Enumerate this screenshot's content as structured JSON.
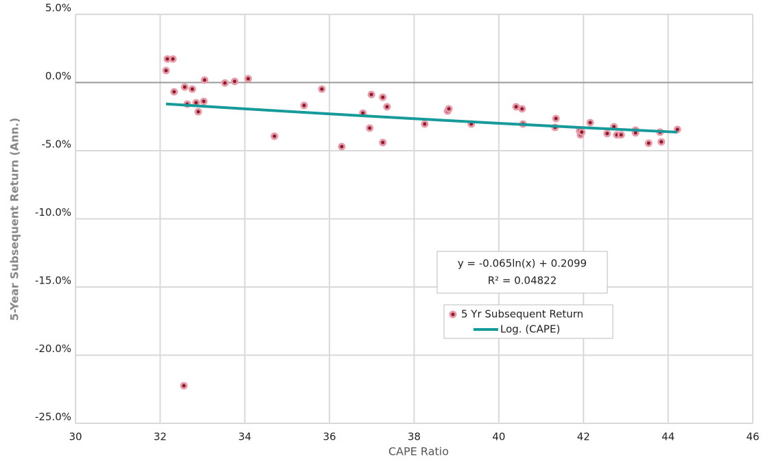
{
  "chart_data": {
    "type": "scatter",
    "x_label": "CAPE Ratio",
    "y_label": "5-Year Subsequent Return (Ann.)",
    "xlim": [
      30,
      46
    ],
    "xticks": [
      30,
      32,
      34,
      36,
      38,
      40,
      42,
      44,
      46
    ],
    "ylim": [
      -25,
      5
    ],
    "yticks": [
      {
        "value": 5,
        "label": "5.0%"
      },
      {
        "value": 0,
        "label": "0.0%"
      },
      {
        "value": -5,
        "label": "-5.0%"
      },
      {
        "value": -10,
        "label": "-10.0%"
      },
      {
        "value": -15,
        "label": "-15.0%"
      },
      {
        "value": -20,
        "label": "-20.0%"
      },
      {
        "value": -25,
        "label": "-25.0%"
      }
    ],
    "grid": true,
    "annotations": [
      "y = -0.065ln(x) + 0.2099",
      "R² = 0.04822"
    ],
    "series": [
      {
        "name": "5 Yr Subsequent Return",
        "color": "#8b1a2b",
        "x": [
          32.14,
          32.17,
          32.3,
          32.33,
          32.58,
          32.64,
          32.76,
          32.85,
          32.9,
          33.03,
          33.05,
          33.53,
          33.76,
          34.08,
          32.56,
          34.7,
          35.4,
          35.82,
          36.29,
          36.79,
          36.95,
          36.99,
          37.26,
          37.26,
          37.36,
          38.25,
          38.79,
          38.82,
          39.35,
          40.41,
          40.55,
          40.57,
          41.33,
          41.35,
          41.91,
          41.93,
          41.96,
          42.16,
          42.56,
          42.72,
          42.79,
          42.89,
          43.23,
          43.23,
          43.54,
          43.81,
          43.84,
          44.22
        ],
        "values": [
          0.88,
          1.73,
          1.73,
          -0.68,
          -0.33,
          -1.58,
          -0.48,
          -1.48,
          -2.14,
          -1.38,
          0.18,
          -0.03,
          0.08,
          0.28,
          -22.24,
          -3.94,
          -1.68,
          -0.48,
          -4.7,
          -2.24,
          -3.34,
          -0.88,
          -1.08,
          -4.4,
          -1.78,
          -3.04,
          -2.09,
          -1.93,
          -3.04,
          -1.78,
          -1.93,
          -3.04,
          -3.29,
          -2.64,
          -3.54,
          -3.84,
          -3.64,
          -2.94,
          -3.74,
          -3.24,
          -3.84,
          -3.84,
          -3.49,
          -3.69,
          -4.45,
          -3.64,
          -4.35,
          -3.44
        ]
      },
      {
        "name": "Log. (CAPE)",
        "color": "#169a9a",
        "type": "line",
        "x": [
          32.14,
          34,
          36,
          38,
          40,
          42,
          44.22
        ],
        "values": [
          -1.57,
          -1.93,
          -2.3,
          -2.65,
          -2.99,
          -3.31,
          -3.64
        ]
      }
    ]
  }
}
